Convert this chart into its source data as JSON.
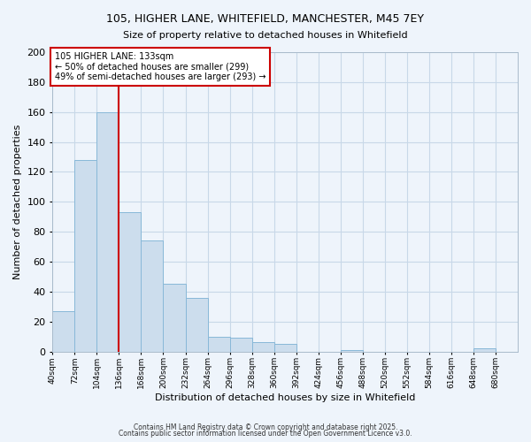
{
  "title": "105, HIGHER LANE, WHITEFIELD, MANCHESTER, M45 7EY",
  "subtitle": "Size of property relative to detached houses in Whitefield",
  "xlabel": "Distribution of detached houses by size in Whitefield",
  "ylabel": "Number of detached properties",
  "bar_left_edges": [
    40,
    72,
    104,
    136,
    168,
    200,
    232,
    264,
    296,
    328,
    360,
    392,
    424,
    456,
    488,
    520,
    552,
    584,
    616,
    648
  ],
  "bar_heights": [
    27,
    128,
    160,
    93,
    74,
    45,
    36,
    10,
    9,
    6,
    5,
    0,
    0,
    1,
    0,
    0,
    0,
    0,
    0,
    2
  ],
  "bin_width": 32,
  "bar_color": "#ccdded",
  "bar_edge_color": "#88b8d8",
  "vline_x": 136,
  "vline_color": "#cc0000",
  "ylim": [
    0,
    200
  ],
  "yticks": [
    0,
    20,
    40,
    60,
    80,
    100,
    120,
    140,
    160,
    180,
    200
  ],
  "xtick_labels": [
    "40sqm",
    "72sqm",
    "104sqm",
    "136sqm",
    "168sqm",
    "200sqm",
    "232sqm",
    "264sqm",
    "296sqm",
    "328sqm",
    "360sqm",
    "392sqm",
    "424sqm",
    "456sqm",
    "488sqm",
    "520sqm",
    "552sqm",
    "584sqm",
    "616sqm",
    "648sqm",
    "680sqm"
  ],
  "annotation_text": "105 HIGHER LANE: 133sqm\n← 50% of detached houses are smaller (299)\n49% of semi-detached houses are larger (293) →",
  "annotation_box_color": "#ffffff",
  "annotation_border_color": "#cc0000",
  "grid_color": "#c8d8e8",
  "bg_color": "#eef4fb",
  "footnote1": "Contains HM Land Registry data © Crown copyright and database right 2025.",
  "footnote2": "Contains public sector information licensed under the Open Government Licence v3.0."
}
